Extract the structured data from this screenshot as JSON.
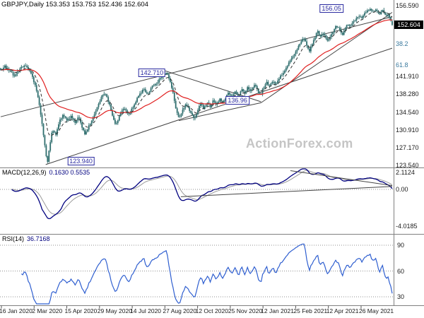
{
  "meta": {
    "title": "GBPJPY,Daily 153.353 153.753 152.436 152.604"
  },
  "watermark": "ActionForex.com",
  "colors": {
    "candle": "#2f6e6e",
    "ma_slow": "#e02020",
    "ma_fast_dash": "#303030",
    "macd_line": "#00007f",
    "macd_signal": "#9a9a9a",
    "rsi_line": "#2f5fd0",
    "trendline": "#444444",
    "grid_dotted": "#909090",
    "separator": "#808080",
    "pivot_border": "#2a2aa0",
    "axis_text": "#1a1a1a",
    "fib_text": "#3b7a9e",
    "tag_bg": "#000000",
    "tag_text": "#ffffff"
  },
  "main": {
    "y_axis": [
      {
        "label": "156.590",
        "price": 156.59
      },
      {
        "label": "141.910",
        "price": 141.91
      },
      {
        "label": "138.280",
        "price": 138.28
      },
      {
        "label": "134.540",
        "price": 134.54
      },
      {
        "label": "130.910",
        "price": 130.91
      },
      {
        "label": "127.170",
        "price": 127.17
      },
      {
        "label": "123.540",
        "price": 123.54
      }
    ],
    "fib_labels": [
      {
        "label": "38.2",
        "price": 148.76
      },
      {
        "label": "61.8",
        "price": 144.25
      }
    ],
    "price_tag": {
      "label": "152.604",
      "price": 152.604
    },
    "pivot_labels": [
      {
        "label": "156.05",
        "t": 0.845,
        "price": 156.05
      },
      {
        "label": "142.710",
        "t": 0.386,
        "price": 142.71
      },
      {
        "label": "136.96",
        "t": 0.605,
        "price": 136.96
      },
      {
        "label": "123.940",
        "t": 0.205,
        "price": 123.94
      }
    ],
    "trendlines": [
      {
        "t1": 0.0,
        "p1": 133.6,
        "t2": 1.0,
        "p2": 154.3
      },
      {
        "t1": 0.115,
        "p1": 123.7,
        "t2": 1.0,
        "p2": 147.8
      },
      {
        "t1": 0.42,
        "p1": 143.1,
        "t2": 0.665,
        "p2": 136.7
      },
      {
        "t1": 0.455,
        "p1": 132.8,
        "t2": 0.665,
        "p2": 136.5
      },
      {
        "t1": 0.665,
        "p1": 136.5,
        "t2": 1.0,
        "p2": 155.2
      }
    ]
  },
  "macd": {
    "label": "MACD(12,26,9)",
    "values": "0.1630 0.5535",
    "axis": [
      {
        "label": "2.1124",
        "v": 2.1124
      },
      {
        "label": "0.00",
        "v": 0
      },
      {
        "label": "-4.0185",
        "v": -4.0185
      }
    ],
    "trendlines": [
      {
        "t1": 0.74,
        "v1": 2.05,
        "t2": 1.0,
        "v2": 0.42
      },
      {
        "t1": 0.46,
        "v1": -0.8,
        "t2": 1.0,
        "v2": 0.32
      }
    ]
  },
  "rsi": {
    "label": "RSI(14)",
    "value": "36.7168",
    "axis": [
      {
        "label": "90",
        "v": 90
      },
      {
        "label": "60",
        "v": 60
      },
      {
        "label": "30",
        "v": 30
      }
    ]
  },
  "chart_data": [
    {
      "type": "candlestick",
      "title": "GBPJPY Daily",
      "ylim": [
        123.1,
        157.76
      ],
      "y_ticks": [
        156.59,
        141.91,
        138.28,
        134.54,
        130.91,
        127.17,
        123.54
      ],
      "x_labels": [
        "16 Jan 2020",
        "2 Mar 2020",
        "15 Apr 2020",
        "29 May 2020",
        "14 Jul 2020",
        "27 Aug 2020",
        "12 Oct 2020",
        "25 Nov 2020",
        "12 Jan 2021",
        "25 Feb 2021",
        "12 Apr 2021",
        "26 May 2021"
      ],
      "last_ohlc": {
        "open": 153.353,
        "high": 153.753,
        "low": 152.436,
        "close": 152.604
      },
      "key_points": {
        "cycle_high": 156.05,
        "crash_low": 123.94,
        "sep_2020_high": 142.71,
        "breakout_pivot": 136.96
      },
      "overlays": [
        "slow EMA (red)",
        "fast EMA (dashed)",
        "trend channel lines",
        "fibonacci 38.2 / 61.8"
      ],
      "price_path": [
        [
          0.0,
          143.3
        ],
        [
          0.01,
          144.0
        ],
        [
          0.022,
          143.2
        ],
        [
          0.035,
          142.0
        ],
        [
          0.048,
          143.3
        ],
        [
          0.06,
          144.4
        ],
        [
          0.07,
          143.6
        ],
        [
          0.08,
          142.0
        ],
        [
          0.09,
          139.5
        ],
        [
          0.1,
          135.5
        ],
        [
          0.108,
          130.5
        ],
        [
          0.115,
          126.0
        ],
        [
          0.119,
          123.94
        ],
        [
          0.125,
          127.5
        ],
        [
          0.132,
          131.0
        ],
        [
          0.14,
          129.8
        ],
        [
          0.15,
          132.8
        ],
        [
          0.16,
          134.0
        ],
        [
          0.17,
          132.6
        ],
        [
          0.18,
          133.8
        ],
        [
          0.19,
          132.4
        ],
        [
          0.2,
          133.6
        ],
        [
          0.208,
          131.3
        ],
        [
          0.216,
          129.9
        ],
        [
          0.226,
          131.8
        ],
        [
          0.236,
          133.5
        ],
        [
          0.248,
          135.8
        ],
        [
          0.258,
          137.9
        ],
        [
          0.268,
          138.4
        ],
        [
          0.278,
          136.0
        ],
        [
          0.288,
          133.0
        ],
        [
          0.295,
          131.9
        ],
        [
          0.305,
          134.2
        ],
        [
          0.315,
          135.3
        ],
        [
          0.325,
          134.0
        ],
        [
          0.335,
          135.2
        ],
        [
          0.345,
          136.8
        ],
        [
          0.355,
          138.2
        ],
        [
          0.365,
          139.3
        ],
        [
          0.375,
          138.2
        ],
        [
          0.385,
          139.6
        ],
        [
          0.395,
          140.4
        ],
        [
          0.405,
          141.2
        ],
        [
          0.415,
          142.0
        ],
        [
          0.424,
          142.71
        ],
        [
          0.432,
          141.2
        ],
        [
          0.44,
          138.5
        ],
        [
          0.448,
          134.8
        ],
        [
          0.456,
          133.2
        ],
        [
          0.464,
          134.9
        ],
        [
          0.472,
          136.3
        ],
        [
          0.48,
          135.2
        ],
        [
          0.488,
          133.9
        ],
        [
          0.495,
          133.3
        ],
        [
          0.503,
          134.9
        ],
        [
          0.511,
          136.4
        ],
        [
          0.519,
          135.2
        ],
        [
          0.527,
          136.6
        ],
        [
          0.535,
          135.6
        ],
        [
          0.543,
          137.0
        ],
        [
          0.551,
          136.0
        ],
        [
          0.559,
          137.4
        ],
        [
          0.567,
          136.4
        ],
        [
          0.575,
          137.6
        ],
        [
          0.583,
          138.6
        ],
        [
          0.591,
          137.6
        ],
        [
          0.599,
          138.9
        ],
        [
          0.607,
          137.8
        ],
        [
          0.615,
          139.3
        ],
        [
          0.623,
          138.3
        ],
        [
          0.631,
          139.8
        ],
        [
          0.639,
          138.9
        ],
        [
          0.647,
          140.3
        ],
        [
          0.655,
          139.4
        ],
        [
          0.663,
          138.0
        ],
        [
          0.671,
          139.6
        ],
        [
          0.679,
          140.7
        ],
        [
          0.687,
          139.9
        ],
        [
          0.695,
          141.0
        ],
        [
          0.703,
          140.3
        ],
        [
          0.711,
          141.6
        ],
        [
          0.719,
          142.4
        ],
        [
          0.727,
          143.3
        ],
        [
          0.735,
          144.5
        ],
        [
          0.743,
          145.7
        ],
        [
          0.751,
          146.8
        ],
        [
          0.759,
          148.0
        ],
        [
          0.767,
          149.3
        ],
        [
          0.774,
          149.9
        ],
        [
          0.781,
          148.7
        ],
        [
          0.788,
          147.2
        ],
        [
          0.795,
          148.6
        ],
        [
          0.802,
          150.0
        ],
        [
          0.809,
          151.2
        ],
        [
          0.816,
          150.3
        ],
        [
          0.823,
          151.1
        ],
        [
          0.83,
          150.1
        ],
        [
          0.837,
          149.2
        ],
        [
          0.844,
          150.4
        ],
        [
          0.851,
          151.6
        ],
        [
          0.858,
          152.4
        ],
        [
          0.865,
          151.6
        ],
        [
          0.872,
          150.4
        ],
        [
          0.879,
          151.9
        ],
        [
          0.886,
          152.9
        ],
        [
          0.893,
          152.1
        ],
        [
          0.9,
          153.1
        ],
        [
          0.907,
          153.9
        ],
        [
          0.914,
          154.6
        ],
        [
          0.921,
          153.9
        ],
        [
          0.928,
          154.9
        ],
        [
          0.935,
          155.5
        ],
        [
          0.944,
          156.0
        ],
        [
          0.952,
          155.3
        ],
        [
          0.96,
          155.8
        ],
        [
          0.968,
          154.9
        ],
        [
          0.976,
          155.5
        ],
        [
          0.984,
          154.6
        ],
        [
          0.99,
          154.9
        ],
        [
          0.995,
          153.9
        ],
        [
          1.0,
          152.604
        ]
      ]
    },
    {
      "type": "line",
      "name": "MACD(12,26,9)",
      "current": {
        "macd": 0.163,
        "signal": 0.5535
      },
      "range_labels": {
        "max": 2.1124,
        "zero": 0.0,
        "min": -4.0185
      }
    },
    {
      "type": "line",
      "name": "RSI(14)",
      "current": 36.7168,
      "y_ticks": [
        90,
        60,
        30
      ]
    }
  ]
}
